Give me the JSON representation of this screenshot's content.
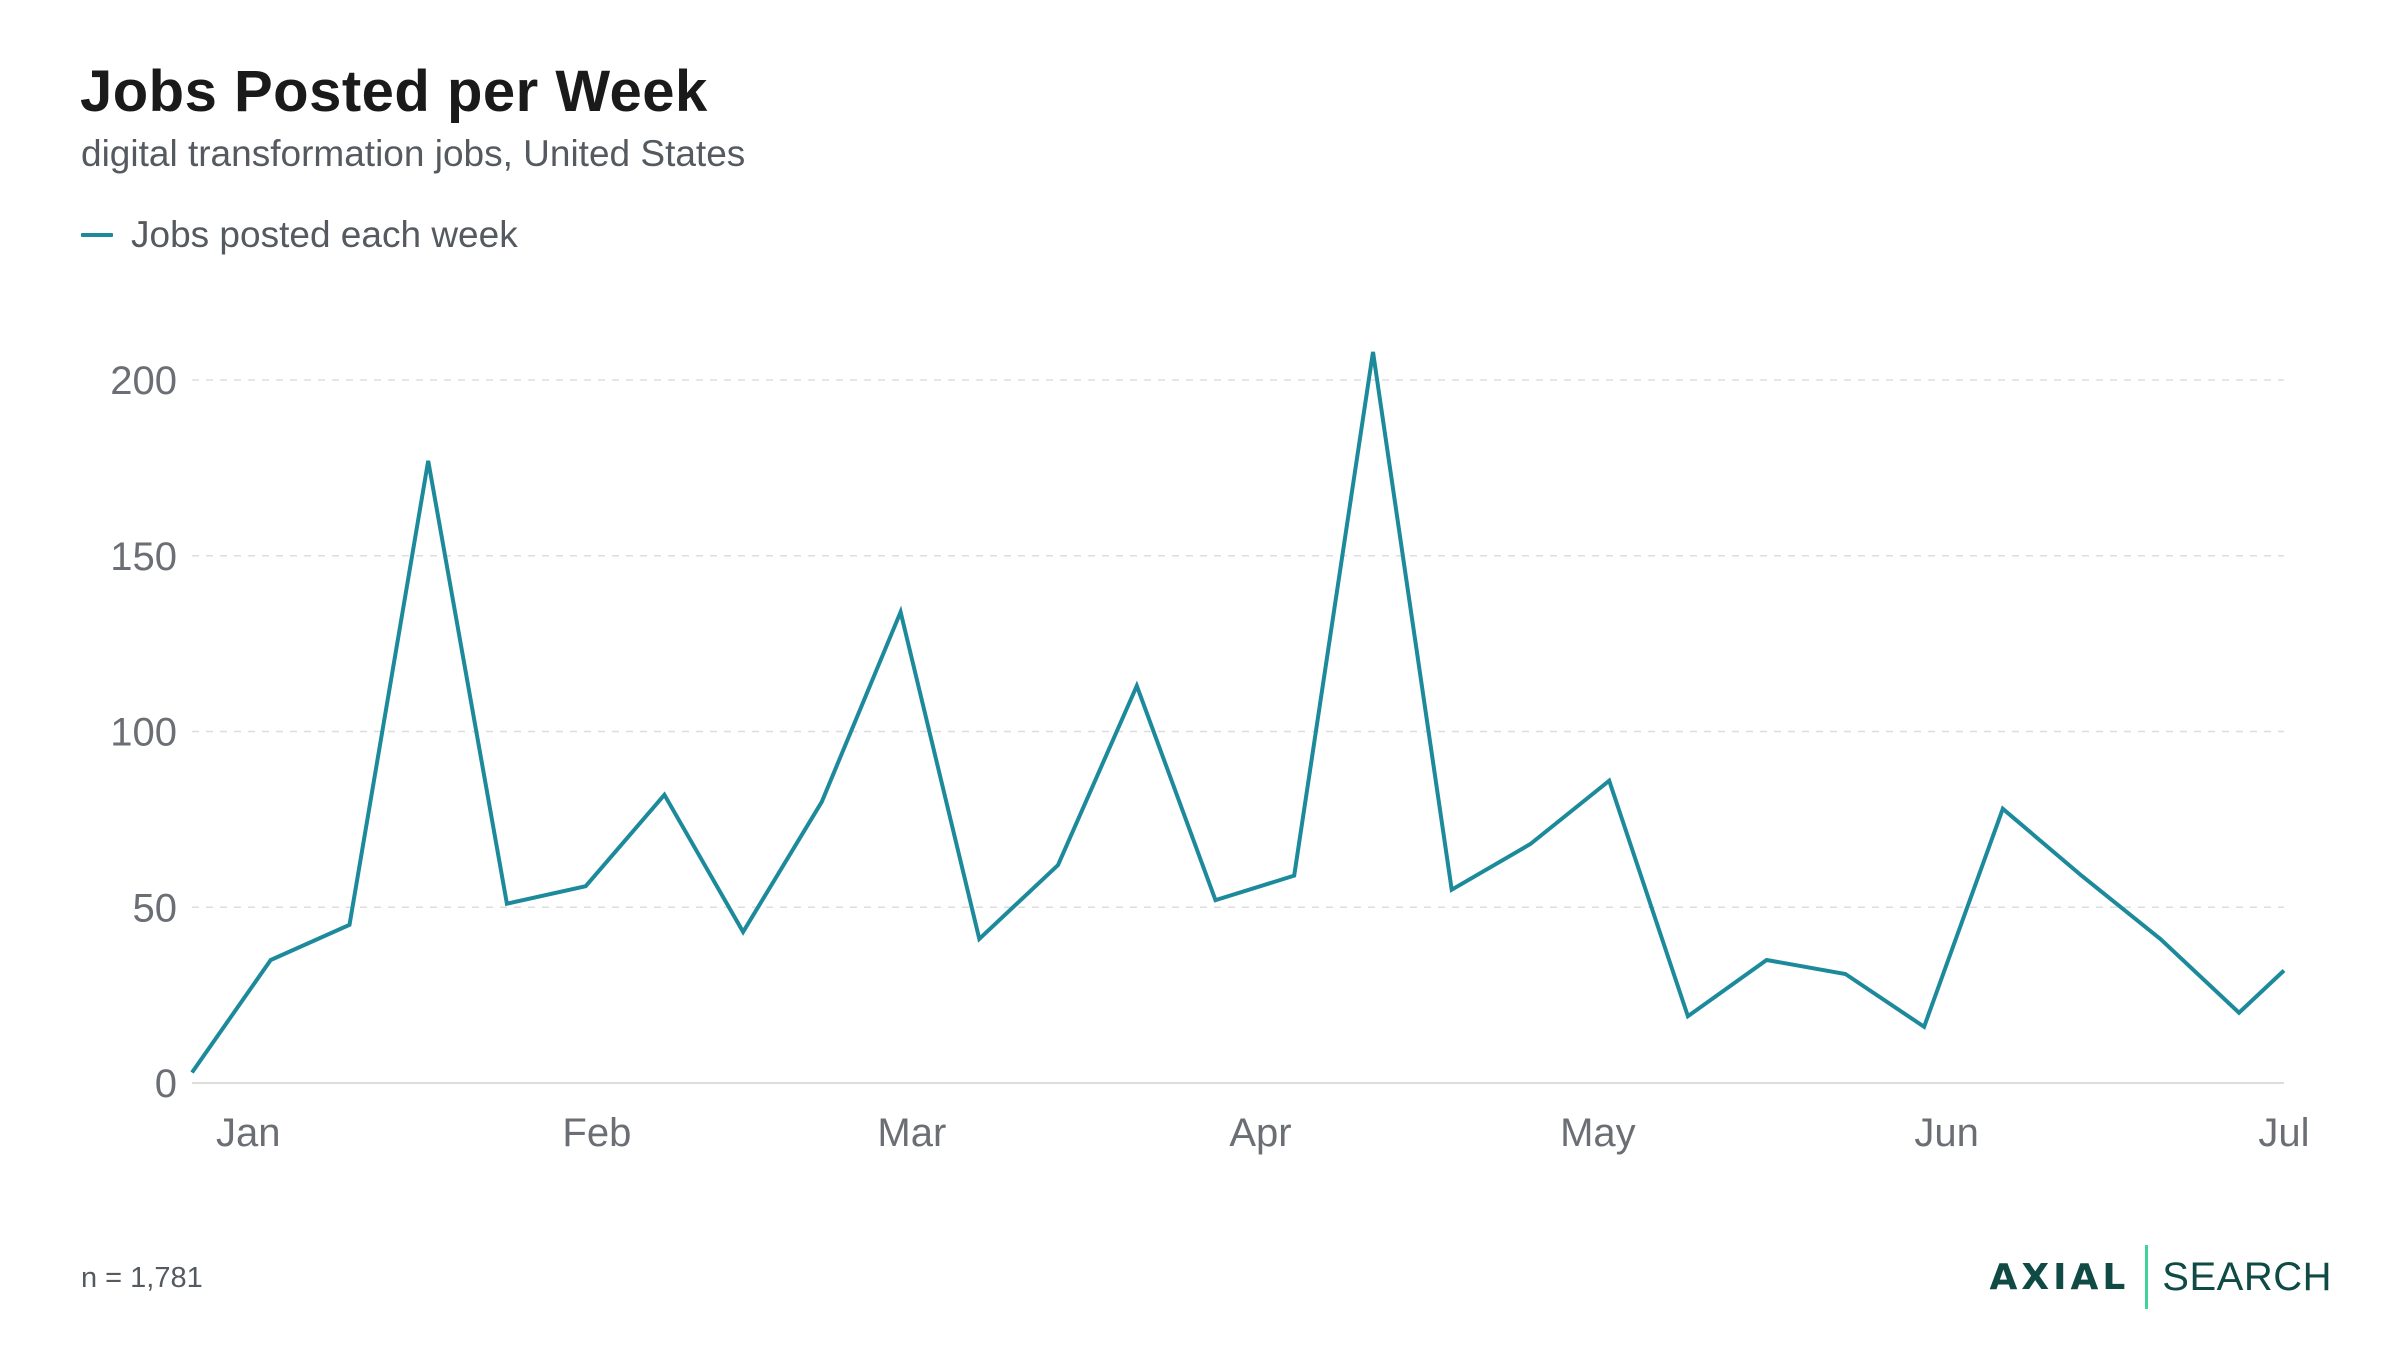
{
  "header": {
    "title": "Jobs Posted per Week",
    "subtitle": "digital transformation jobs, United States"
  },
  "legend": {
    "label": "Jobs posted each week",
    "color": "#1d8a9c"
  },
  "footer": {
    "note": "n = 1,781",
    "logo_left": "AXIAL",
    "logo_right": "SEARCH",
    "logo_bar_color": "#3fd39a",
    "logo_text_color": "#0f4a44"
  },
  "chart_data": {
    "type": "line",
    "title": "Jobs Posted per Week",
    "subtitle": "digital transformation jobs, United States",
    "xlabel": "",
    "ylabel": "",
    "x_tick_labels": [
      "Jan",
      "Feb",
      "Mar",
      "Apr",
      "May",
      "Jun",
      "Jul"
    ],
    "y_ticks": [
      0,
      50,
      100,
      150,
      200
    ],
    "ylim": [
      0,
      200
    ],
    "xlim": [
      "2022-12-27",
      "2023-07-01"
    ],
    "grid": "horizontal dashed",
    "legend_position": "top-left",
    "series": [
      {
        "name": "Jobs posted each week",
        "color": "#1d8a9c",
        "x": [
          "2022-12-27",
          "2023-01-03",
          "2023-01-10",
          "2023-01-17",
          "2023-01-24",
          "2023-01-31",
          "2023-02-07",
          "2023-02-14",
          "2023-02-21",
          "2023-02-28",
          "2023-03-07",
          "2023-03-14",
          "2023-03-21",
          "2023-03-28",
          "2023-04-04",
          "2023-04-11",
          "2023-04-18",
          "2023-04-25",
          "2023-05-02",
          "2023-05-09",
          "2023-05-16",
          "2023-05-23",
          "2023-05-30",
          "2023-06-06",
          "2023-06-13",
          "2023-06-20",
          "2023-06-27",
          "2023-07-04"
        ],
        "values": [
          3,
          35,
          45,
          177,
          51,
          56,
          82,
          43,
          80,
          134,
          41,
          62,
          113,
          52,
          59,
          208,
          55,
          68,
          86,
          19,
          35,
          31,
          16,
          78,
          59,
          41,
          20,
          32
        ]
      }
    ]
  }
}
